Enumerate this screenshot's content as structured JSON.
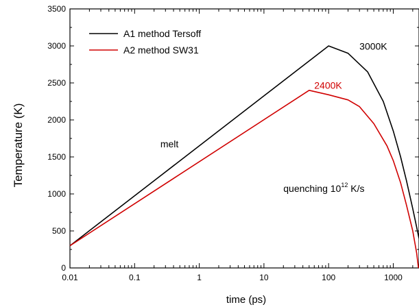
{
  "chart_data": {
    "type": "line",
    "xlabel": "time (ps)",
    "ylabel": "Temperature (K)",
    "xscale": "log",
    "xlim": [
      0.01,
      2500
    ],
    "ylim": [
      0,
      3500
    ],
    "x_ticks": [
      {
        "value": 0.01,
        "label": "0.01"
      },
      {
        "value": 0.1,
        "label": "0.1"
      },
      {
        "value": 1,
        "label": "1"
      },
      {
        "value": 10,
        "label": "10"
      },
      {
        "value": 100,
        "label": "100"
      },
      {
        "value": 1000,
        "label": "1000"
      }
    ],
    "y_ticks": [
      {
        "value": 0,
        "label": "0"
      },
      {
        "value": 500,
        "label": "500"
      },
      {
        "value": 1000,
        "label": "1000"
      },
      {
        "value": 1500,
        "label": "1500"
      },
      {
        "value": 2000,
        "label": "2000"
      },
      {
        "value": 2500,
        "label": "2500"
      },
      {
        "value": 3000,
        "label": "3000"
      },
      {
        "value": 3500,
        "label": "3500"
      }
    ],
    "grid": false,
    "legend_position": "top-left",
    "series": [
      {
        "name": "A1 method Tersoff",
        "color": "#000000",
        "x": [
          0.01,
          100,
          200,
          400,
          700,
          1000,
          1300,
          1600,
          2000,
          2300,
          2500
        ],
        "y": [
          300,
          3000,
          2900,
          2650,
          2250,
          1850,
          1500,
          1180,
          800,
          550,
          400
        ]
      },
      {
        "name": "A2 method SW31",
        "color": "#d00000",
        "x": [
          0.01,
          50,
          100,
          200,
          300,
          500,
          800,
          1000,
          1300,
          1600,
          2000,
          2300,
          2450
        ],
        "y": [
          300,
          2400,
          2340,
          2270,
          2180,
          1950,
          1650,
          1450,
          1150,
          850,
          500,
          200,
          0
        ]
      }
    ],
    "annotations": [
      {
        "text": "3000K",
        "x": 300,
        "y": 2950,
        "color": "#000000"
      },
      {
        "text": "2400K",
        "x": 60,
        "y": 2420,
        "color": "#d00000"
      },
      {
        "text": "melt",
        "x": 0.25,
        "y": 1630,
        "color": "#000000"
      },
      {
        "text": "quenching 10",
        "sup": "12",
        "suffix": " K/s",
        "x": 20,
        "y": 1030,
        "color": "#000000"
      }
    ]
  }
}
